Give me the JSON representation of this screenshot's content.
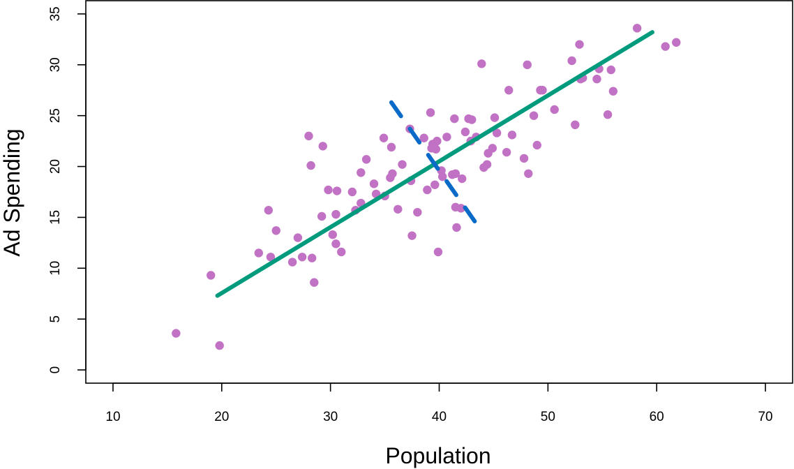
{
  "chart_data": {
    "type": "scatter",
    "title": "",
    "xlabel": "Population",
    "ylabel": "Ad Spending",
    "xlim": [
      7.5,
      72.5
    ],
    "ylim": [
      -1.3,
      36.3
    ],
    "xticks": [
      10,
      20,
      30,
      40,
      50,
      60,
      70
    ],
    "yticks": [
      0,
      5,
      10,
      15,
      20,
      25,
      30,
      35
    ],
    "grid": false,
    "colors": {
      "points": "#c172c4",
      "fit_line": "#009b7d",
      "principal_component": "#0a6ac8"
    },
    "points": [
      {
        "x": 15.8,
        "y": 3.6
      },
      {
        "x": 19.0,
        "y": 9.3
      },
      {
        "x": 19.8,
        "y": 2.4
      },
      {
        "x": 23.4,
        "y": 11.5
      },
      {
        "x": 24.3,
        "y": 15.7
      },
      {
        "x": 24.5,
        "y": 11.1
      },
      {
        "x": 25.0,
        "y": 13.7
      },
      {
        "x": 26.5,
        "y": 10.6
      },
      {
        "x": 27.0,
        "y": 13.0
      },
      {
        "x": 27.4,
        "y": 11.1
      },
      {
        "x": 28.0,
        "y": 23.0
      },
      {
        "x": 28.2,
        "y": 20.1
      },
      {
        "x": 28.3,
        "y": 11.0
      },
      {
        "x": 28.5,
        "y": 8.6
      },
      {
        "x": 29.2,
        "y": 15.1
      },
      {
        "x": 29.3,
        "y": 22.0
      },
      {
        "x": 29.8,
        "y": 17.7
      },
      {
        "x": 30.2,
        "y": 13.3
      },
      {
        "x": 30.5,
        "y": 12.4
      },
      {
        "x": 30.5,
        "y": 15.3
      },
      {
        "x": 30.6,
        "y": 17.6
      },
      {
        "x": 31.0,
        "y": 11.6
      },
      {
        "x": 32.0,
        "y": 17.5
      },
      {
        "x": 32.3,
        "y": 15.7
      },
      {
        "x": 32.8,
        "y": 16.4
      },
      {
        "x": 32.8,
        "y": 19.4
      },
      {
        "x": 33.3,
        "y": 20.7
      },
      {
        "x": 34.0,
        "y": 18.3
      },
      {
        "x": 34.2,
        "y": 17.3
      },
      {
        "x": 34.9,
        "y": 22.8
      },
      {
        "x": 35.0,
        "y": 17.1
      },
      {
        "x": 35.5,
        "y": 18.9
      },
      {
        "x": 35.6,
        "y": 21.9
      },
      {
        "x": 35.7,
        "y": 19.3
      },
      {
        "x": 36.2,
        "y": 15.8
      },
      {
        "x": 36.6,
        "y": 20.2
      },
      {
        "x": 37.3,
        "y": 23.7
      },
      {
        "x": 37.4,
        "y": 18.6
      },
      {
        "x": 37.5,
        "y": 13.2
      },
      {
        "x": 38.0,
        "y": 15.5
      },
      {
        "x": 38.6,
        "y": 22.8
      },
      {
        "x": 38.9,
        "y": 17.7
      },
      {
        "x": 39.2,
        "y": 25.3
      },
      {
        "x": 39.3,
        "y": 21.8
      },
      {
        "x": 39.4,
        "y": 22.2
      },
      {
        "x": 39.6,
        "y": 18.2
      },
      {
        "x": 39.7,
        "y": 21.7
      },
      {
        "x": 39.8,
        "y": 22.5
      },
      {
        "x": 39.9,
        "y": 11.6
      },
      {
        "x": 40.2,
        "y": 19.6
      },
      {
        "x": 40.3,
        "y": 19.0
      },
      {
        "x": 40.7,
        "y": 22.9
      },
      {
        "x": 41.2,
        "y": 19.2
      },
      {
        "x": 41.4,
        "y": 24.7
      },
      {
        "x": 41.5,
        "y": 16.0
      },
      {
        "x": 41.5,
        "y": 19.3
      },
      {
        "x": 41.6,
        "y": 14.0
      },
      {
        "x": 42.0,
        "y": 15.9
      },
      {
        "x": 42.1,
        "y": 18.8
      },
      {
        "x": 42.4,
        "y": 23.4
      },
      {
        "x": 42.7,
        "y": 24.7
      },
      {
        "x": 42.9,
        "y": 22.5
      },
      {
        "x": 43.0,
        "y": 24.6
      },
      {
        "x": 43.4,
        "y": 22.9
      },
      {
        "x": 43.9,
        "y": 30.1
      },
      {
        "x": 44.1,
        "y": 19.9
      },
      {
        "x": 44.4,
        "y": 20.2
      },
      {
        "x": 44.5,
        "y": 21.3
      },
      {
        "x": 44.9,
        "y": 21.8
      },
      {
        "x": 45.1,
        "y": 24.8
      },
      {
        "x": 45.3,
        "y": 23.3
      },
      {
        "x": 46.2,
        "y": 21.4
      },
      {
        "x": 46.4,
        "y": 27.5
      },
      {
        "x": 46.7,
        "y": 23.1
      },
      {
        "x": 47.8,
        "y": 20.8
      },
      {
        "x": 48.1,
        "y": 30.0
      },
      {
        "x": 48.2,
        "y": 19.3
      },
      {
        "x": 48.7,
        "y": 25.0
      },
      {
        "x": 49.0,
        "y": 22.1
      },
      {
        "x": 49.3,
        "y": 27.5
      },
      {
        "x": 49.5,
        "y": 27.5
      },
      {
        "x": 50.6,
        "y": 25.6
      },
      {
        "x": 52.2,
        "y": 30.4
      },
      {
        "x": 52.5,
        "y": 24.1
      },
      {
        "x": 52.9,
        "y": 32.0
      },
      {
        "x": 53.0,
        "y": 28.6
      },
      {
        "x": 53.2,
        "y": 28.7
      },
      {
        "x": 54.5,
        "y": 28.6
      },
      {
        "x": 54.7,
        "y": 29.6
      },
      {
        "x": 55.5,
        "y": 25.1
      },
      {
        "x": 55.8,
        "y": 29.5
      },
      {
        "x": 56.0,
        "y": 27.4
      },
      {
        "x": 58.2,
        "y": 33.6
      },
      {
        "x": 60.8,
        "y": 31.8
      },
      {
        "x": 61.8,
        "y": 32.2
      }
    ],
    "fit_line": {
      "x": [
        19.6,
        59.6
      ],
      "y": [
        7.3,
        33.2
      ],
      "style": "solid"
    },
    "principal_component": {
      "x": [
        35.6,
        43.6
      ],
      "y": [
        26.3,
        14.1
      ],
      "style": "dashed"
    }
  }
}
